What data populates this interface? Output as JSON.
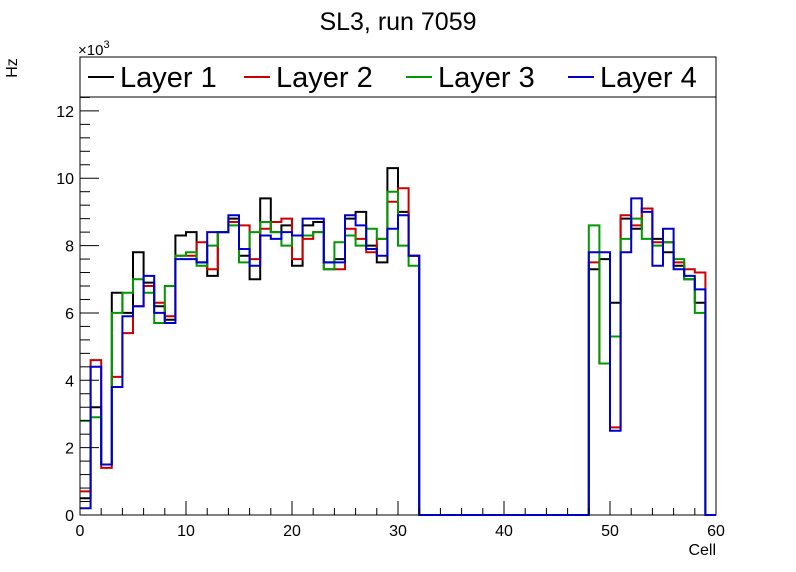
{
  "chart_data": {
    "type": "histogram",
    "title": "SL3, run 7059",
    "xlabel": "Cell",
    "ylabel": "Hz",
    "y_multiplier_label": "×10",
    "y_multiplier_exponent": "3",
    "xlim": [
      0,
      60
    ],
    "ylim": [
      0,
      13.6
    ],
    "x_ticks": [
      0,
      10,
      20,
      30,
      40,
      50,
      60
    ],
    "x_tick_labels": [
      "0",
      "10",
      "20",
      "30",
      "40",
      "50",
      "60"
    ],
    "y_ticks": [
      0,
      2,
      4,
      6,
      8,
      10,
      12
    ],
    "y_tick_labels": [
      "0",
      "2",
      "4",
      "6",
      "8",
      "10",
      "12"
    ],
    "bin_width": 1,
    "grid": false,
    "legend_position": "top",
    "series": [
      {
        "name": "Layer 1",
        "color": "#000000",
        "values": [
          0.5,
          3.2,
          1.5,
          6.6,
          6.0,
          7.8,
          6.9,
          6.2,
          5.8,
          8.3,
          8.4,
          7.5,
          7.1,
          8.4,
          8.8,
          7.7,
          7.0,
          9.4,
          8.4,
          8.6,
          7.4,
          8.6,
          8.7,
          7.5,
          7.6,
          8.8,
          9.0,
          8.0,
          7.5,
          10.3,
          9.0,
          7.7,
          0,
          0,
          0,
          0,
          0,
          0,
          0,
          0,
          0,
          0,
          0,
          0,
          0,
          0,
          0,
          0,
          7.3,
          7.6,
          6.3,
          8.8,
          8.5,
          9.1,
          8.2,
          7.8,
          7.4,
          7.0,
          6.3,
          0
        ]
      },
      {
        "name": "Layer 2",
        "color": "#cc0000",
        "values": [
          0.7,
          4.6,
          1.4,
          4.1,
          5.4,
          6.2,
          6.8,
          6.3,
          5.9,
          7.7,
          7.7,
          8.1,
          7.3,
          8.4,
          8.7,
          8.6,
          7.6,
          8.5,
          8.7,
          8.8,
          7.6,
          8.2,
          8.4,
          7.3,
          7.3,
          8.5,
          8.2,
          7.8,
          8.2,
          9.3,
          9.7,
          7.7,
          0,
          0,
          0,
          0,
          0,
          0,
          0,
          0,
          0,
          0,
          0,
          0,
          0,
          0,
          0,
          0,
          7.5,
          4.5,
          2.6,
          8.9,
          8.6,
          9.1,
          8.1,
          8.1,
          7.5,
          7.3,
          7.2,
          0
        ]
      },
      {
        "name": "Layer 3",
        "color": "#009900",
        "values": [
          2.8,
          2.9,
          1.5,
          6.0,
          6.6,
          7.0,
          6.6,
          5.7,
          6.8,
          7.7,
          7.8,
          7.4,
          8.0,
          8.4,
          8.6,
          7.5,
          8.4,
          8.7,
          8.4,
          8.0,
          8.3,
          8.3,
          8.4,
          7.3,
          8.1,
          8.3,
          8.0,
          8.5,
          8.2,
          9.6,
          8.0,
          7.4,
          0,
          0,
          0,
          0,
          0,
          0,
          0,
          0,
          0,
          0,
          0,
          0,
          0,
          0,
          0,
          0,
          8.6,
          4.5,
          5.3,
          8.2,
          8.8,
          8.2,
          8.0,
          8.1,
          7.6,
          7.0,
          6.0,
          0
        ]
      },
      {
        "name": "Layer 4",
        "color": "#0000cc",
        "values": [
          0.2,
          4.4,
          1.5,
          3.8,
          5.9,
          6.2,
          7.1,
          6.0,
          5.7,
          7.6,
          7.6,
          7.5,
          8.4,
          8.4,
          8.9,
          7.9,
          7.4,
          8.3,
          8.2,
          8.4,
          8.3,
          8.8,
          8.8,
          7.5,
          7.5,
          8.9,
          8.6,
          7.9,
          7.7,
          8.5,
          8.9,
          7.7,
          0,
          0,
          0,
          0,
          0,
          0,
          0,
          0,
          0,
          0,
          0,
          0,
          0,
          0,
          0,
          0,
          7.8,
          7.8,
          2.5,
          7.8,
          9.4,
          9.0,
          7.4,
          8.5,
          7.3,
          7.1,
          6.7,
          0
        ]
      }
    ]
  }
}
